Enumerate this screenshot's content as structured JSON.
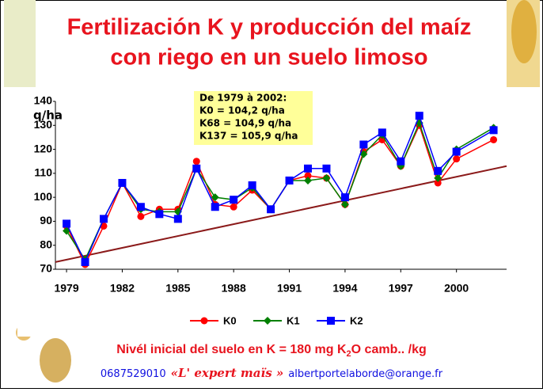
{
  "chart_data": {
    "type": "line",
    "title_lines": [
      "Fertilización K y producción del maíz",
      "con riego en un suelo limoso"
    ],
    "y_label": "q/ha",
    "annotation_lines": [
      "De 1979 à 2002:",
      "K0 = 104,2 q/ha",
      "K68 = 104,9 q/ha",
      "K137 = 105,9 q/ha"
    ],
    "x": [
      1979,
      1980,
      1981,
      1982,
      1983,
      1984,
      1985,
      1986,
      1987,
      1988,
      1989,
      1990,
      1991,
      1992,
      1993,
      1994,
      1995,
      1996,
      1997,
      1998,
      1999,
      2000,
      2002
    ],
    "series": [
      {
        "name": "K0",
        "color": "#ff0000",
        "marker": "circle",
        "values": [
          88,
          72,
          88,
          106,
          92,
          95,
          95,
          115,
          97,
          96,
          103,
          95,
          107,
          109,
          108,
          97,
          119,
          124,
          113,
          130,
          106,
          116,
          124
        ]
      },
      {
        "name": "K1",
        "color": "#008000",
        "marker": "diamond",
        "values": [
          86,
          74,
          91,
          106,
          95,
          94,
          94,
          112,
          100,
          99,
          104,
          95,
          107,
          107,
          108,
          97,
          118,
          126,
          113,
          131,
          108,
          120,
          129
        ]
      },
      {
        "name": "K2",
        "color": "#0000ff",
        "marker": "square",
        "values": [
          89,
          73,
          91,
          106,
          96,
          93,
          91,
          112,
          96,
          99,
          105,
          95,
          107,
          112,
          112,
          100,
          122,
          127,
          115,
          134,
          111,
          119,
          128
        ]
      }
    ],
    "trend_line": {
      "color": "#8b1a1a",
      "x": [
        1978.4,
        2002.7
      ],
      "values": [
        73,
        113
      ]
    },
    "xlim": [
      1978.4,
      2002.7
    ],
    "xticks": [
      1979,
      1982,
      1985,
      1988,
      1991,
      1994,
      1997,
      2000
    ],
    "ylim": [
      70,
      140
    ],
    "yticks": [
      70,
      80,
      90,
      100,
      110,
      120,
      130,
      140
    ],
    "note": {
      "before": "Nivél inicial del suelo en K = 180 mg K",
      "sub": "2",
      "after": "O camb.. /kg"
    },
    "footer": {
      "phone": "0687529010",
      "brand": "«L' expert maïs »",
      "email": "albertportelaborde@orange.fr"
    }
  }
}
